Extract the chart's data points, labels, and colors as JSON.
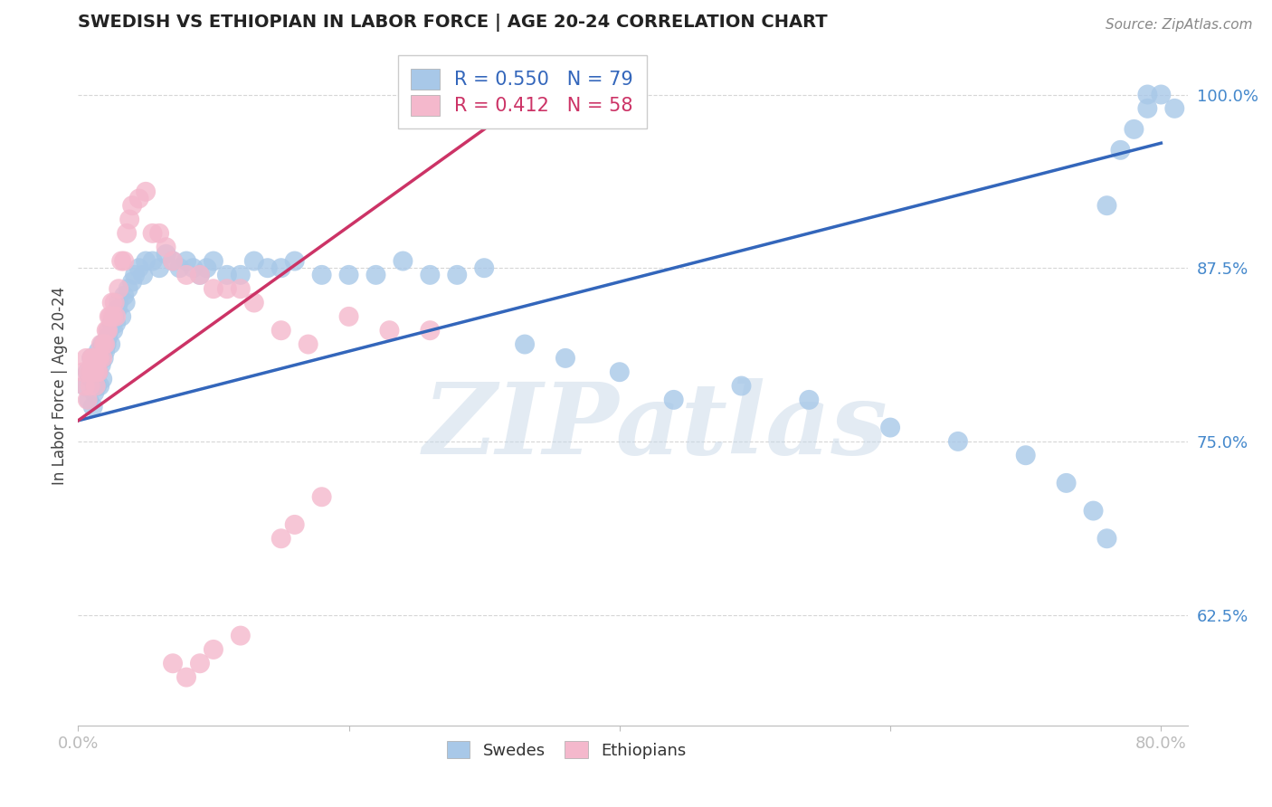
{
  "title": "SWEDISH VS ETHIOPIAN IN LABOR FORCE | AGE 20-24 CORRELATION CHART",
  "source": "Source: ZipAtlas.com",
  "ylabel": "In Labor Force | Age 20-24",
  "yticks": [
    "62.5%",
    "75.0%",
    "87.5%",
    "100.0%"
  ],
  "ytick_vals": [
    0.625,
    0.75,
    0.875,
    1.0
  ],
  "xlim": [
    0.0,
    0.82
  ],
  "ylim": [
    0.545,
    1.035
  ],
  "legend_blue": {
    "R": "0.550",
    "N": "79",
    "label": "Swedes"
  },
  "legend_pink": {
    "R": "0.412",
    "N": "58",
    "label": "Ethiopians"
  },
  "blue_color": "#A8C8E8",
  "pink_color": "#F4B8CC",
  "blue_line_color": "#3366BB",
  "pink_line_color": "#CC3366",
  "watermark": "ZIPatlas",
  "background_color": "#FFFFFF",
  "blue_line_x": [
    0.0,
    0.8
  ],
  "blue_line_y": [
    0.765,
    0.965
  ],
  "pink_line_x": [
    0.0,
    0.3
  ],
  "pink_line_y": [
    0.765,
    0.975
  ],
  "swedes_x": [
    0.005,
    0.007,
    0.008,
    0.01,
    0.01,
    0.011,
    0.012,
    0.013,
    0.013,
    0.014,
    0.015,
    0.015,
    0.016,
    0.017,
    0.018,
    0.018,
    0.019,
    0.02,
    0.021,
    0.022,
    0.023,
    0.024,
    0.025,
    0.026,
    0.027,
    0.028,
    0.029,
    0.03,
    0.032,
    0.034,
    0.035,
    0.037,
    0.04,
    0.042,
    0.045,
    0.048,
    0.05,
    0.055,
    0.06,
    0.065,
    0.07,
    0.075,
    0.08,
    0.085,
    0.09,
    0.095,
    0.1,
    0.11,
    0.12,
    0.13,
    0.14,
    0.15,
    0.16,
    0.18,
    0.2,
    0.22,
    0.24,
    0.26,
    0.28,
    0.3,
    0.33,
    0.36,
    0.4,
    0.44,
    0.49,
    0.54,
    0.6,
    0.65,
    0.7,
    0.73,
    0.75,
    0.76,
    0.76,
    0.77,
    0.78,
    0.79,
    0.79,
    0.8,
    0.81
  ],
  "swedes_y": [
    0.79,
    0.8,
    0.78,
    0.81,
    0.795,
    0.775,
    0.785,
    0.8,
    0.81,
    0.79,
    0.8,
    0.815,
    0.79,
    0.805,
    0.82,
    0.795,
    0.81,
    0.815,
    0.82,
    0.825,
    0.83,
    0.82,
    0.835,
    0.83,
    0.84,
    0.835,
    0.845,
    0.85,
    0.84,
    0.855,
    0.85,
    0.86,
    0.865,
    0.87,
    0.875,
    0.87,
    0.88,
    0.88,
    0.875,
    0.885,
    0.88,
    0.875,
    0.88,
    0.875,
    0.87,
    0.875,
    0.88,
    0.87,
    0.87,
    0.88,
    0.875,
    0.875,
    0.88,
    0.87,
    0.87,
    0.87,
    0.88,
    0.87,
    0.87,
    0.875,
    0.82,
    0.81,
    0.8,
    0.78,
    0.79,
    0.78,
    0.76,
    0.75,
    0.74,
    0.72,
    0.7,
    0.68,
    0.92,
    0.96,
    0.975,
    0.99,
    1.0,
    1.0,
    0.99
  ],
  "ethiopians_x": [
    0.004,
    0.005,
    0.006,
    0.007,
    0.008,
    0.009,
    0.01,
    0.01,
    0.011,
    0.012,
    0.013,
    0.014,
    0.015,
    0.015,
    0.016,
    0.017,
    0.018,
    0.019,
    0.02,
    0.021,
    0.022,
    0.023,
    0.024,
    0.025,
    0.026,
    0.027,
    0.028,
    0.03,
    0.032,
    0.034,
    0.036,
    0.038,
    0.04,
    0.045,
    0.05,
    0.055,
    0.06,
    0.065,
    0.07,
    0.08,
    0.09,
    0.1,
    0.11,
    0.12,
    0.13,
    0.15,
    0.17,
    0.2,
    0.23,
    0.26,
    0.15,
    0.16,
    0.18,
    0.07,
    0.08,
    0.09,
    0.1,
    0.12
  ],
  "ethiopians_y": [
    0.8,
    0.79,
    0.81,
    0.78,
    0.8,
    0.79,
    0.81,
    0.8,
    0.81,
    0.8,
    0.79,
    0.8,
    0.81,
    0.8,
    0.81,
    0.82,
    0.81,
    0.82,
    0.82,
    0.83,
    0.83,
    0.84,
    0.84,
    0.85,
    0.84,
    0.85,
    0.84,
    0.86,
    0.88,
    0.88,
    0.9,
    0.91,
    0.92,
    0.925,
    0.93,
    0.9,
    0.9,
    0.89,
    0.88,
    0.87,
    0.87,
    0.86,
    0.86,
    0.86,
    0.85,
    0.83,
    0.82,
    0.84,
    0.83,
    0.83,
    0.68,
    0.69,
    0.71,
    0.59,
    0.58,
    0.59,
    0.6,
    0.61
  ]
}
